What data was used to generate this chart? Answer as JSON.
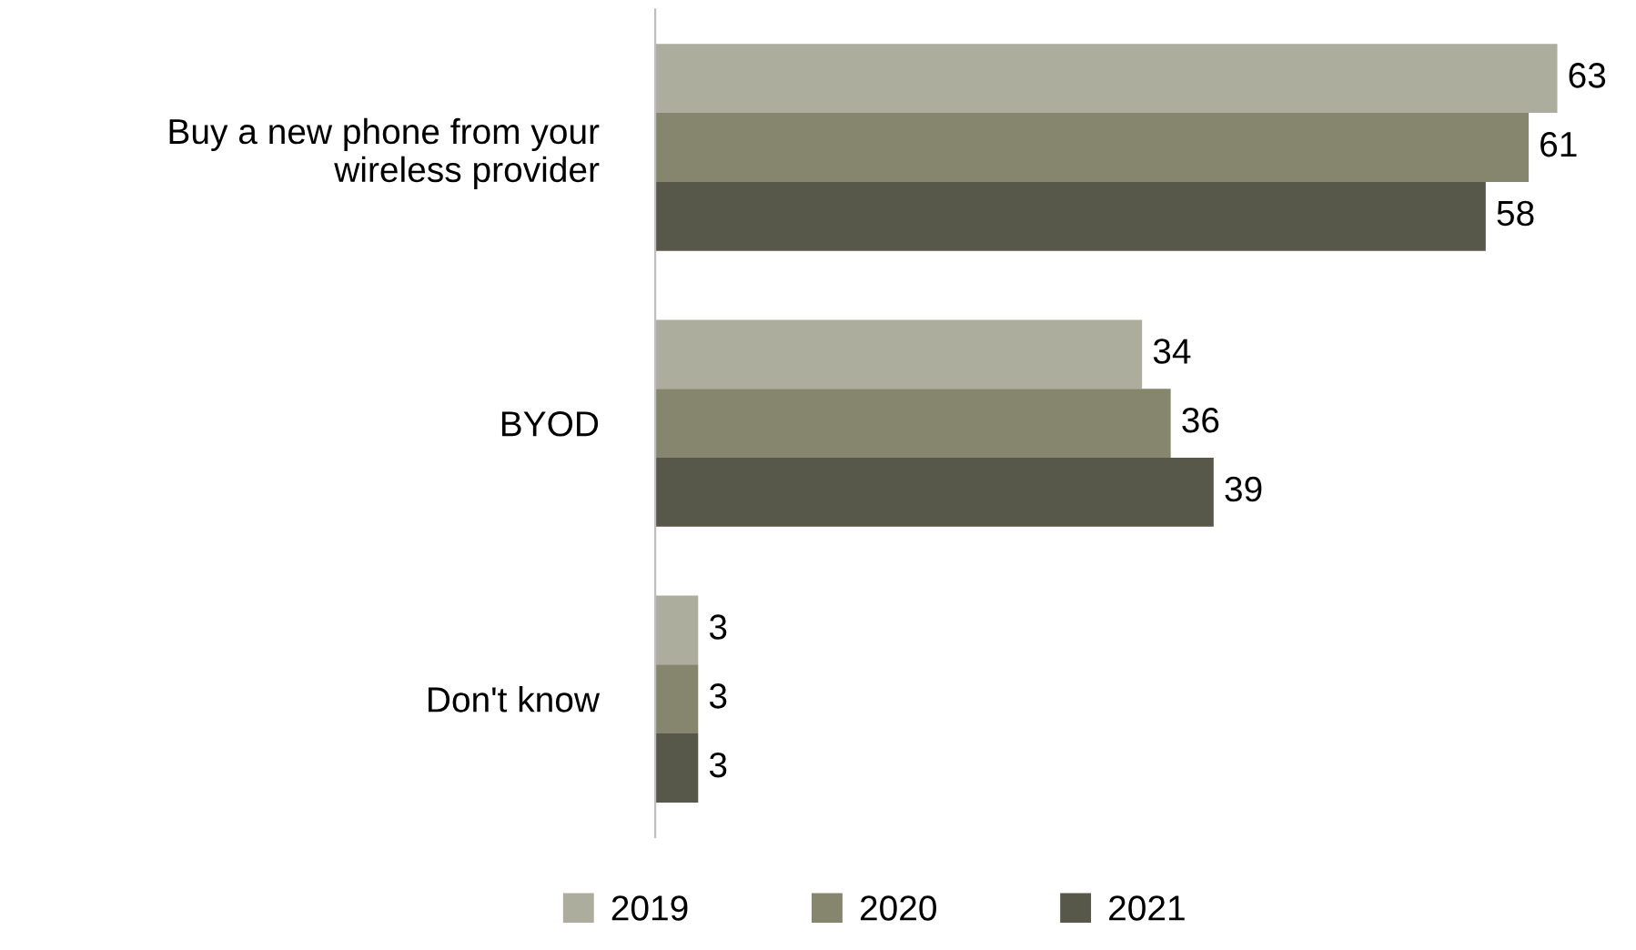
{
  "chart_data": {
    "type": "bar",
    "orientation": "horizontal",
    "categories": [
      "Buy a new phone from your\nwireless provider",
      "BYOD",
      "Don't know"
    ],
    "series": [
      {
        "name": "2019",
        "color": "#adad9e",
        "values": [
          63,
          34,
          3
        ]
      },
      {
        "name": "2020",
        "color": "#86866f",
        "values": [
          61,
          36,
          3
        ]
      },
      {
        "name": "2021",
        "color": "#58584a",
        "values": [
          58,
          39,
          3
        ]
      }
    ],
    "data_labels": true,
    "legend": "bottom",
    "grid": false
  }
}
